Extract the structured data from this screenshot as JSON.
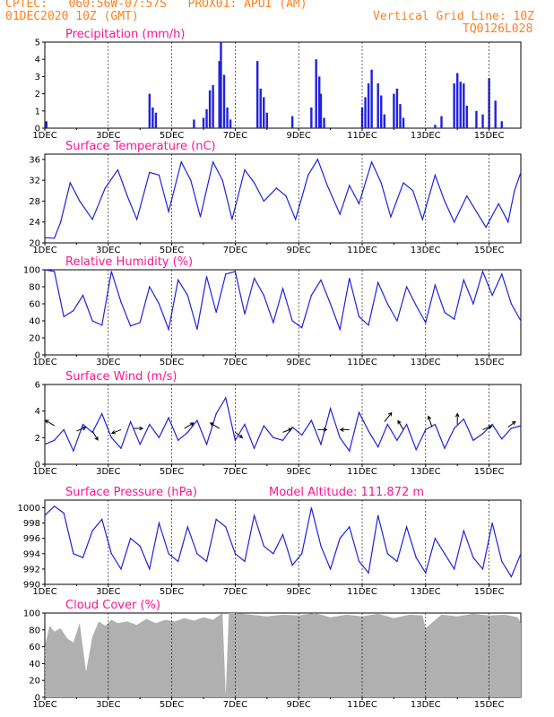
{
  "header": {
    "line1": "CPTEC:   060:56W-07:57S   PROX01: APUI (AM)",
    "line2": "01DEC2020 10Z (GMT)",
    "grid_note": "Vertical Grid Line: 10Z",
    "code": "TQ0126L028"
  },
  "x_axis": {
    "tick_labels": [
      "1DEC",
      "3DEC",
      "5DEC",
      "7DEC",
      "9DEC",
      "11DEC",
      "13DEC",
      "15DEC"
    ],
    "range_days": [
      1,
      16
    ]
  },
  "colors": {
    "header": "#ff7f1e",
    "title": "#ff1493",
    "line": "#2020e0",
    "cloud_fill": "#b0b0b0",
    "grid": "#000000"
  },
  "chart_data": [
    {
      "type": "bar",
      "title": "Precipitation (mm/h)",
      "ylim": [
        0,
        5
      ],
      "yticks": [
        0,
        1,
        2,
        3,
        4,
        5
      ],
      "x": [
        1.05,
        4.3,
        4.4,
        4.5,
        5.7,
        6.0,
        6.1,
        6.2,
        6.3,
        6.5,
        6.55,
        6.65,
        6.75,
        6.85,
        7.7,
        7.8,
        7.9,
        8.0,
        8.8,
        9.4,
        9.55,
        9.65,
        9.7,
        9.8,
        11.0,
        11.1,
        11.2,
        11.3,
        11.5,
        11.6,
        11.7,
        12.0,
        12.1,
        12.2,
        12.3,
        13.3,
        13.5,
        13.9,
        14.0,
        14.1,
        14.2,
        14.3,
        14.6,
        14.8,
        15.0,
        15.2,
        15.4
      ],
      "values": [
        0.4,
        2.0,
        1.2,
        0.9,
        0.5,
        0.6,
        1.1,
        2.2,
        2.5,
        3.9,
        5.0,
        3.1,
        1.2,
        0.5,
        3.9,
        2.3,
        1.8,
        0.9,
        0.7,
        1.2,
        4.0,
        3.0,
        2.0,
        0.6,
        1.2,
        1.8,
        2.6,
        3.4,
        2.6,
        1.9,
        0.8,
        2.0,
        2.3,
        1.4,
        0.6,
        0.2,
        0.7,
        2.6,
        3.2,
        2.7,
        2.6,
        1.3,
        1.0,
        0.8,
        2.9,
        1.6,
        0.4
      ]
    },
    {
      "type": "line",
      "title": "Surface Temperature (nC)",
      "ylim": [
        20,
        37
      ],
      "yticks": [
        20,
        24,
        28,
        32,
        36
      ],
      "x": [
        1.0,
        1.3,
        1.5,
        1.8,
        2.1,
        2.5,
        2.9,
        3.3,
        3.6,
        3.9,
        4.3,
        4.6,
        4.9,
        5.3,
        5.6,
        5.9,
        6.3,
        6.6,
        6.9,
        7.3,
        7.6,
        7.9,
        8.3,
        8.6,
        8.9,
        9.3,
        9.6,
        9.9,
        10.3,
        10.6,
        10.9,
        11.3,
        11.6,
        11.9,
        12.3,
        12.6,
        12.9,
        13.3,
        13.6,
        13.9,
        14.3,
        14.6,
        14.9,
        15.3,
        15.6,
        15.8,
        16.0
      ],
      "values": [
        21.0,
        20.9,
        24.0,
        31.5,
        28.0,
        24.5,
        30.5,
        34.0,
        29.0,
        24.5,
        33.5,
        33.0,
        26.0,
        35.5,
        32.0,
        25.0,
        35.5,
        32.0,
        24.5,
        34.0,
        31.5,
        28.0,
        30.5,
        29.0,
        24.5,
        33.0,
        36.0,
        31.0,
        25.5,
        31.0,
        27.5,
        35.5,
        31.5,
        25.0,
        31.5,
        30.0,
        24.5,
        33.0,
        28.0,
        24.0,
        29.0,
        26.0,
        23.0,
        27.5,
        24.0,
        30.0,
        33.5
      ]
    },
    {
      "type": "line",
      "title": "Relative Humidity (%)",
      "ylim": [
        0,
        100
      ],
      "yticks": [
        0,
        20,
        40,
        60,
        80,
        100
      ],
      "x": [
        1.0,
        1.3,
        1.6,
        1.9,
        2.2,
        2.5,
        2.8,
        3.1,
        3.4,
        3.7,
        4.0,
        4.3,
        4.6,
        4.9,
        5.2,
        5.5,
        5.8,
        6.1,
        6.4,
        6.7,
        7.0,
        7.3,
        7.6,
        7.9,
        8.2,
        8.5,
        8.8,
        9.1,
        9.4,
        9.7,
        10.0,
        10.3,
        10.6,
        10.9,
        11.2,
        11.5,
        11.8,
        12.1,
        12.4,
        12.7,
        13.0,
        13.3,
        13.6,
        13.9,
        14.2,
        14.5,
        14.8,
        15.1,
        15.4,
        15.7,
        16.0
      ],
      "values": [
        100,
        98,
        45,
        52,
        70,
        40,
        35,
        98,
        62,
        34,
        38,
        80,
        60,
        30,
        88,
        70,
        30,
        92,
        50,
        95,
        98,
        48,
        90,
        70,
        38,
        78,
        40,
        32,
        70,
        88,
        60,
        30,
        90,
        45,
        35,
        85,
        60,
        40,
        80,
        58,
        38,
        82,
        50,
        42,
        88,
        60,
        98,
        70,
        95,
        60,
        40
      ]
    },
    {
      "type": "line",
      "title": "Surface Wind (m/s)",
      "ylim": [
        0,
        6
      ],
      "yticks": [
        0,
        2,
        4,
        6
      ],
      "x": [
        1.0,
        1.3,
        1.6,
        1.9,
        2.2,
        2.5,
        2.8,
        3.1,
        3.4,
        3.7,
        4.0,
        4.3,
        4.6,
        4.9,
        5.2,
        5.5,
        5.8,
        6.1,
        6.4,
        6.7,
        7.0,
        7.3,
        7.6,
        7.9,
        8.2,
        8.5,
        8.8,
        9.1,
        9.4,
        9.7,
        10.0,
        10.3,
        10.6,
        10.9,
        11.2,
        11.5,
        11.8,
        12.1,
        12.4,
        12.7,
        13.0,
        13.3,
        13.6,
        13.9,
        14.2,
        14.5,
        14.8,
        15.1,
        15.4,
        15.7,
        16.0
      ],
      "values": [
        1.5,
        1.8,
        2.6,
        1.0,
        3.0,
        2.4,
        3.8,
        2.0,
        1.2,
        3.2,
        1.5,
        3.0,
        2.0,
        3.5,
        1.8,
        2.4,
        3.3,
        1.5,
        3.8,
        5.0,
        1.8,
        3.0,
        1.2,
        2.9,
        2.0,
        1.8,
        2.8,
        2.2,
        3.3,
        1.5,
        4.2,
        2.0,
        1.0,
        3.9,
        2.5,
        1.3,
        3.0,
        1.8,
        3.0,
        1.1,
        2.6,
        3.0,
        1.2,
        2.7,
        3.4,
        1.8,
        2.3,
        3.0,
        1.9,
        2.7,
        2.9
      ],
      "arrows": [
        [
          1.3,
          2.9,
          -10,
          -6
        ],
        [
          2.0,
          2.5,
          10,
          -4
        ],
        [
          2.5,
          2.5,
          6,
          10
        ],
        [
          3.4,
          2.6,
          -10,
          4
        ],
        [
          3.8,
          2.7,
          10,
          0
        ],
        [
          5.4,
          2.7,
          10,
          -6
        ],
        [
          6.5,
          2.7,
          -10,
          -6
        ],
        [
          7.0,
          2.4,
          8,
          6
        ],
        [
          8.5,
          2.4,
          10,
          -4
        ],
        [
          9.6,
          2.6,
          10,
          0
        ],
        [
          10.6,
          2.6,
          -10,
          0
        ],
        [
          11.7,
          3.2,
          8,
          -10
        ],
        [
          12.3,
          2.6,
          -6,
          -10
        ],
        [
          13.2,
          2.8,
          -4,
          -12
        ],
        [
          14.0,
          3.0,
          0,
          -12
        ],
        [
          14.8,
          2.6,
          10,
          -4
        ],
        [
          15.6,
          2.8,
          8,
          -6
        ]
      ]
    },
    {
      "type": "line",
      "title": "Surface Pressure (hPa)",
      "annotation": "Model Altitude: 111.872 m",
      "ylim": [
        990,
        1001
      ],
      "yticks": [
        990,
        992,
        994,
        996,
        998,
        1000
      ],
      "x": [
        1.0,
        1.3,
        1.6,
        1.9,
        2.2,
        2.5,
        2.8,
        3.1,
        3.4,
        3.7,
        4.0,
        4.3,
        4.6,
        4.9,
        5.2,
        5.5,
        5.8,
        6.1,
        6.4,
        6.7,
        7.0,
        7.3,
        7.6,
        7.9,
        8.2,
        8.5,
        8.8,
        9.1,
        9.4,
        9.7,
        10.0,
        10.3,
        10.6,
        10.9,
        11.2,
        11.5,
        11.8,
        12.1,
        12.4,
        12.7,
        13.0,
        13.3,
        13.6,
        13.9,
        14.2,
        14.5,
        14.8,
        15.1,
        15.4,
        15.7,
        16.0
      ],
      "values": [
        999.0,
        1000.2,
        999.3,
        994.0,
        993.5,
        997.0,
        998.5,
        994.0,
        992.0,
        996.0,
        995.0,
        992.0,
        998.0,
        994.0,
        993.0,
        997.5,
        994.0,
        993.0,
        998.5,
        997.5,
        994.0,
        993.0,
        999.0,
        995.0,
        994.0,
        996.5,
        992.5,
        994.0,
        1000.0,
        995.0,
        992.0,
        996.0,
        997.5,
        993.0,
        991.5,
        999.0,
        994.0,
        993.0,
        997.5,
        993.5,
        991.5,
        996.0,
        994.0,
        992.0,
        997.0,
        993.5,
        992.0,
        998.0,
        993.0,
        991.0,
        994.0
      ]
    },
    {
      "type": "area",
      "title": "Cloud Cover (%)",
      "ylim": [
        0,
        100
      ],
      "yticks": [
        0,
        20,
        40,
        60,
        80,
        100
      ],
      "x": [
        1.0,
        1.15,
        1.3,
        1.5,
        1.7,
        1.9,
        2.1,
        2.3,
        2.5,
        2.7,
        2.9,
        3.1,
        3.3,
        3.6,
        3.9,
        4.2,
        4.5,
        4.8,
        5.1,
        5.4,
        5.7,
        6.0,
        6.3,
        6.6,
        6.7,
        6.8,
        7.0,
        7.5,
        8.0,
        8.5,
        9.0,
        9.5,
        10.0,
        10.5,
        11.0,
        11.5,
        12.0,
        12.5,
        12.9,
        13.0,
        13.5,
        14.0,
        14.5,
        15.0,
        15.5,
        15.9,
        16.0
      ],
      "values": [
        60,
        85,
        78,
        82,
        70,
        65,
        88,
        30,
        72,
        90,
        85,
        92,
        88,
        90,
        86,
        93,
        88,
        92,
        90,
        94,
        91,
        95,
        92,
        100,
        2,
        100,
        100,
        98,
        96,
        98,
        97,
        100,
        95,
        98,
        96,
        99,
        94,
        98,
        97,
        82,
        98,
        96,
        99,
        97,
        98,
        95,
        88
      ]
    }
  ]
}
